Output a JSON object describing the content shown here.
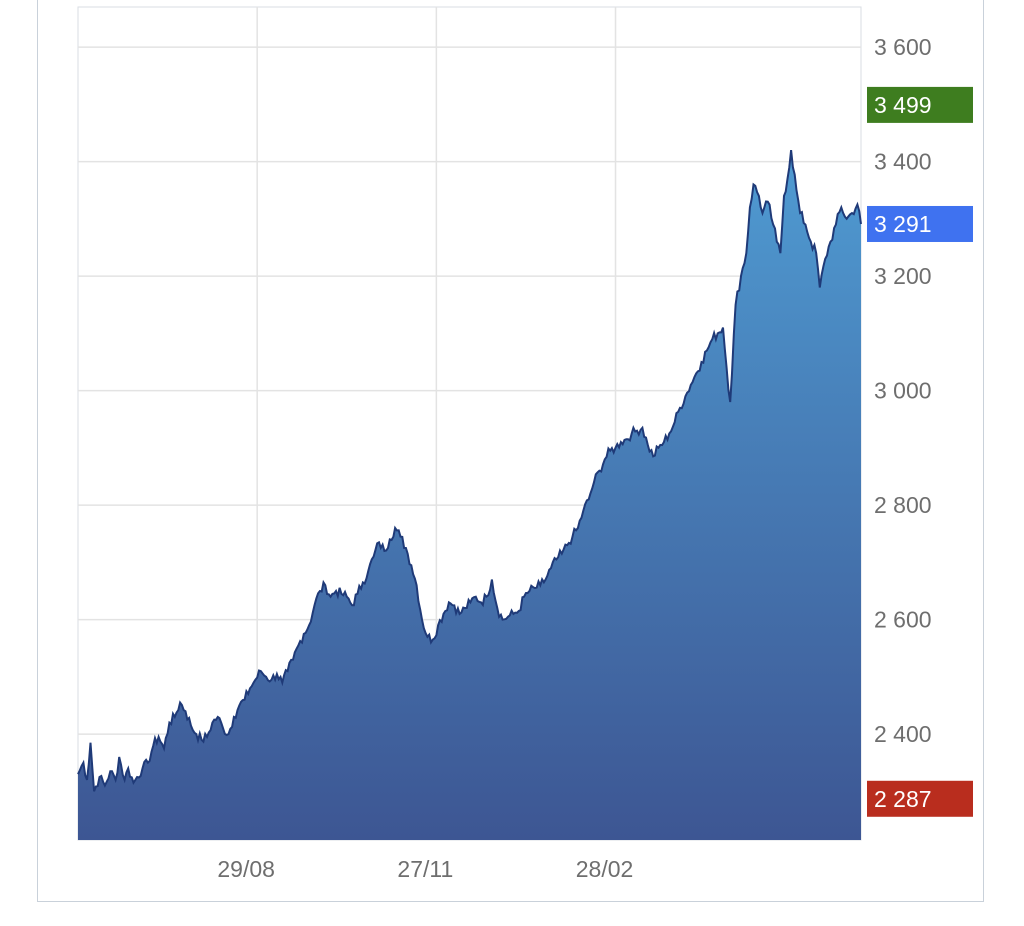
{
  "chart_data": {
    "type": "area",
    "title": "",
    "xlabel": "",
    "ylabel": "",
    "ylim": [
      2215,
      3670
    ],
    "y_ticks": [
      2400,
      2600,
      2800,
      3000,
      3200,
      3400,
      3600
    ],
    "y_tick_labels": [
      "2 400",
      "2 600",
      "2 800",
      "3 000",
      "3 200",
      "3 400",
      "3 600"
    ],
    "x_tick_labels": [
      {
        "label": "29/08",
        "index": 100
      },
      {
        "label": "27/11",
        "index": 200
      },
      {
        "label": "28/02",
        "index": 300
      }
    ],
    "grid": true,
    "colors": {
      "fill_top": "#4f9bd2",
      "fill_bottom": "#3d5693",
      "line": "#1f3a78",
      "grid": "#e3e3e3",
      "high": "#3e7d1f",
      "current": "#3f72f0",
      "low": "#b92d1e"
    },
    "markers": [
      {
        "name": "high",
        "value": 3499,
        "label": "3 499"
      },
      {
        "name": "current",
        "value": 3291,
        "label": "3 291"
      },
      {
        "name": "low",
        "value": 2287,
        "label": "2 287"
      }
    ],
    "series": [
      {
        "keypoints": [
          [
            0,
            2330
          ],
          [
            3,
            2350
          ],
          [
            5,
            2320
          ],
          [
            7,
            2385
          ],
          [
            9,
            2300
          ],
          [
            12,
            2325
          ],
          [
            15,
            2310
          ],
          [
            18,
            2335
          ],
          [
            21,
            2320
          ],
          [
            23,
            2360
          ],
          [
            26,
            2320
          ],
          [
            28,
            2340
          ],
          [
            31,
            2315
          ],
          [
            33,
            2325
          ],
          [
            36,
            2340
          ],
          [
            39,
            2350
          ],
          [
            42,
            2380
          ],
          [
            45,
            2395
          ],
          [
            48,
            2375
          ],
          [
            51,
            2420
          ],
          [
            54,
            2430
          ],
          [
            57,
            2455
          ],
          [
            60,
            2440
          ],
          [
            63,
            2415
          ],
          [
            66,
            2400
          ],
          [
            69,
            2390
          ],
          [
            72,
            2395
          ],
          [
            75,
            2420
          ],
          [
            78,
            2430
          ],
          [
            81,
            2410
          ],
          [
            84,
            2400
          ],
          [
            87,
            2430
          ],
          [
            90,
            2450
          ],
          [
            93,
            2460
          ],
          [
            96,
            2480
          ],
          [
            99,
            2495
          ],
          [
            102,
            2510
          ],
          [
            105,
            2500
          ],
          [
            108,
            2495
          ],
          [
            111,
            2505
          ],
          [
            114,
            2490
          ],
          [
            117,
            2510
          ],
          [
            120,
            2530
          ],
          [
            123,
            2555
          ],
          [
            126,
            2575
          ],
          [
            129,
            2590
          ],
          [
            132,
            2625
          ],
          [
            135,
            2650
          ],
          [
            138,
            2660
          ],
          [
            141,
            2640
          ],
          [
            144,
            2650
          ],
          [
            147,
            2645
          ],
          [
            150,
            2640
          ],
          [
            153,
            2625
          ],
          [
            156,
            2645
          ],
          [
            159,
            2665
          ],
          [
            162,
            2685
          ],
          [
            165,
            2710
          ],
          [
            168,
            2735
          ],
          [
            171,
            2720
          ],
          [
            174,
            2740
          ],
          [
            177,
            2760
          ],
          [
            180,
            2745
          ],
          [
            183,
            2725
          ],
          [
            186,
            2695
          ],
          [
            189,
            2660
          ],
          [
            192,
            2600
          ],
          [
            195,
            2570
          ],
          [
            198,
            2565
          ],
          [
            201,
            2590
          ],
          [
            204,
            2610
          ],
          [
            207,
            2630
          ],
          [
            210,
            2625
          ],
          [
            213,
            2610
          ],
          [
            216,
            2620
          ],
          [
            219,
            2630
          ],
          [
            222,
            2640
          ],
          [
            225,
            2630
          ],
          [
            228,
            2640
          ],
          [
            231,
            2670
          ],
          [
            234,
            2620
          ],
          [
            237,
            2600
          ],
          [
            240,
            2605
          ],
          [
            243,
            2610
          ],
          [
            246,
            2615
          ],
          [
            249,
            2640
          ],
          [
            252,
            2650
          ],
          [
            255,
            2655
          ],
          [
            258,
            2660
          ],
          [
            261,
            2670
          ],
          [
            264,
            2690
          ],
          [
            267,
            2705
          ],
          [
            270,
            2715
          ],
          [
            273,
            2730
          ],
          [
            276,
            2745
          ],
          [
            279,
            2760
          ],
          [
            282,
            2790
          ],
          [
            285,
            2810
          ],
          [
            288,
            2840
          ],
          [
            291,
            2860
          ],
          [
            294,
            2880
          ],
          [
            297,
            2895
          ],
          [
            300,
            2900
          ],
          [
            303,
            2910
          ],
          [
            306,
            2915
          ],
          [
            309,
            2925
          ],
          [
            312,
            2930
          ],
          [
            315,
            2935
          ],
          [
            318,
            2905
          ],
          [
            321,
            2885
          ],
          [
            324,
            2900
          ],
          [
            327,
            2910
          ],
          [
            330,
            2925
          ],
          [
            333,
            2945
          ],
          [
            336,
            2970
          ],
          [
            339,
            2990
          ],
          [
            342,
            3010
          ],
          [
            345,
            3030
          ],
          [
            348,
            3050
          ],
          [
            351,
            3070
          ],
          [
            354,
            3090
          ],
          [
            357,
            3100
          ],
          [
            360,
            3110
          ],
          [
            362,
            3040
          ],
          [
            364,
            2980
          ],
          [
            367,
            3150
          ],
          [
            370,
            3200
          ],
          [
            373,
            3240
          ],
          [
            375,
            3320
          ],
          [
            377,
            3360
          ],
          [
            380,
            3340
          ],
          [
            382,
            3310
          ],
          [
            385,
            3330
          ],
          [
            388,
            3290
          ],
          [
            390,
            3260
          ],
          [
            392,
            3240
          ],
          [
            394,
            3340
          ],
          [
            396,
            3370
          ],
          [
            398,
            3420
          ],
          [
            401,
            3350
          ],
          [
            403,
            3310
          ],
          [
            406,
            3290
          ],
          [
            409,
            3260
          ],
          [
            412,
            3240
          ],
          [
            414,
            3180
          ],
          [
            417,
            3230
          ],
          [
            420,
            3260
          ],
          [
            423,
            3290
          ],
          [
            426,
            3320
          ],
          [
            429,
            3300
          ],
          [
            432,
            3310
          ],
          [
            435,
            3325
          ],
          [
            437,
            3291
          ]
        ]
      }
    ]
  }
}
